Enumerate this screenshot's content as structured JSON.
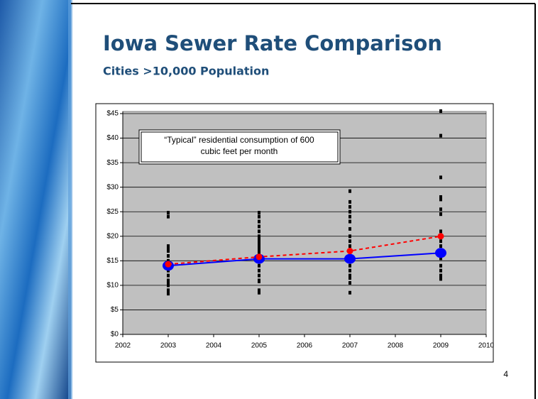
{
  "title": "Iowa Sewer Rate Comparison",
  "subtitle": "Cities >10,000 Population",
  "page_number": "4",
  "chart_data": {
    "type": "scatter",
    "annotation": [
      "“Typical” residential consumption of 600",
      "cubic feet per month"
    ],
    "xlim": [
      2002,
      2010
    ],
    "xticks": [
      2002,
      2003,
      2004,
      2005,
      2006,
      2007,
      2008,
      2009,
      2010
    ],
    "ylim": [
      0,
      45
    ],
    "yticks": [
      {
        "value": 0,
        "label": "$0"
      },
      {
        "value": 5,
        "label": "$5"
      },
      {
        "value": 10,
        "label": "$10"
      },
      {
        "value": 15,
        "label": "$15"
      },
      {
        "value": 20,
        "label": "$20"
      },
      {
        "value": 25,
        "label": "$25"
      },
      {
        "value": 30,
        "label": "$30"
      },
      {
        "value": 35,
        "label": "$35"
      },
      {
        "value": 40,
        "label": "$40"
      },
      {
        "value": 45,
        "label": "$45"
      }
    ],
    "grid": true,
    "series": [
      {
        "color": "#000000",
        "marker": "square",
        "line": "none",
        "x": [
          2003,
          2003,
          2003,
          2003,
          2003,
          2003,
          2003,
          2003,
          2003,
          2003,
          2003,
          2003,
          2003,
          2003,
          2003,
          2005,
          2005,
          2005,
          2005,
          2005,
          2005,
          2005,
          2005,
          2005,
          2005,
          2005,
          2005,
          2005,
          2005,
          2005,
          2005,
          2005,
          2005,
          2005,
          2005,
          2005,
          2005,
          2007,
          2007,
          2007,
          2007,
          2007,
          2007,
          2007,
          2007,
          2007,
          2007,
          2007,
          2007,
          2007,
          2007,
          2007,
          2007,
          2007,
          2007,
          2007,
          2007,
          2009,
          2009,
          2009,
          2009,
          2009,
          2009,
          2009,
          2009,
          2009,
          2009,
          2009,
          2009,
          2009,
          2009,
          2009,
          2009,
          2009,
          2009
        ],
        "values": [
          24.8,
          24,
          18,
          17.5,
          17,
          16,
          15,
          14,
          13,
          12,
          11,
          10.5,
          10,
          9,
          8.3,
          24.8,
          24,
          23,
          22,
          21,
          20,
          19.5,
          19,
          18.5,
          18,
          17.5,
          17,
          16.5,
          16,
          15,
          14,
          13,
          12,
          11,
          10.8,
          9,
          8.5,
          29.2,
          27,
          26,
          25,
          24,
          23,
          21.5,
          20,
          19,
          18,
          17,
          16,
          15.5,
          15,
          14,
          13,
          12,
          11.5,
          10.5,
          8.5,
          45.5,
          40.5,
          32,
          28,
          27.5,
          25.5,
          24.5,
          21,
          20,
          19,
          18,
          17,
          16.5,
          15.5,
          14,
          13,
          12,
          11.3
        ]
      },
      {
        "color": "#0000ff",
        "marker": "big-circle",
        "line": "solid",
        "x": [
          2003,
          2005,
          2007,
          2009
        ],
        "values": [
          14,
          15.4,
          15.4,
          16.6
        ]
      },
      {
        "color": "#ff0000",
        "marker": "circle",
        "line": "dashed",
        "x": [
          2003,
          2005,
          2007,
          2009
        ],
        "values": [
          14.3,
          15.8,
          17,
          20
        ]
      }
    ]
  }
}
